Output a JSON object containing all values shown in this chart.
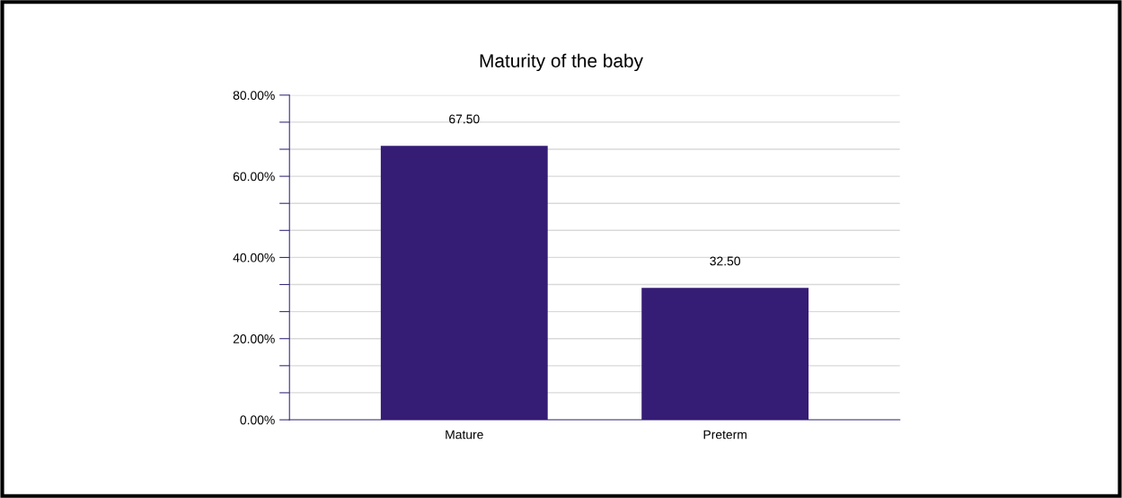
{
  "chart_data": {
    "type": "bar",
    "title": "Maturity of the baby",
    "categories": [
      "Mature",
      "Preterm"
    ],
    "values": [
      67.5,
      32.5
    ],
    "value_labels": [
      "67.50",
      "32.50"
    ],
    "color": "#351c75",
    "ylim": [
      0,
      80
    ],
    "yticks": [
      {
        "value": 0,
        "label": "0.00%"
      },
      {
        "value": 6.667,
        "label": null
      },
      {
        "value": 13.333,
        "label": null
      },
      {
        "value": 20,
        "label": "20.00%"
      },
      {
        "value": 26.667,
        "label": null
      },
      {
        "value": 33.333,
        "label": null
      },
      {
        "value": 40,
        "label": "40.00%"
      },
      {
        "value": 46.667,
        "label": null
      },
      {
        "value": 53.333,
        "label": null
      },
      {
        "value": 60,
        "label": "60.00%"
      },
      {
        "value": 66.667,
        "label": null
      },
      {
        "value": 73.333,
        "label": null
      },
      {
        "value": 80,
        "label": "80.00%"
      }
    ],
    "grid": "y",
    "legend": false
  }
}
